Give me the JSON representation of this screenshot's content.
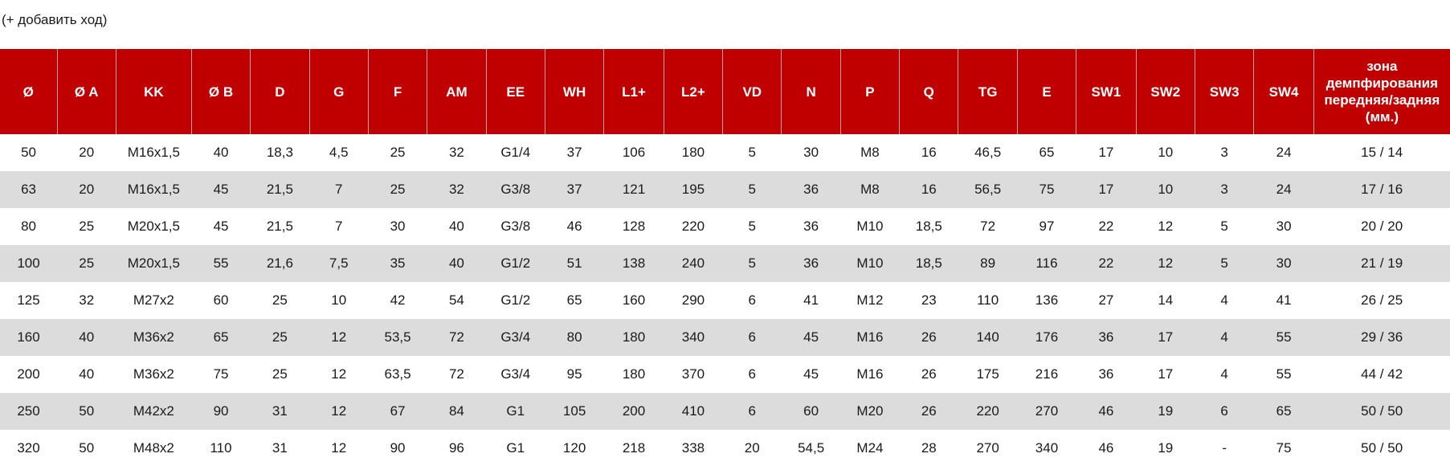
{
  "note": "(+ добавить ход)",
  "columns": [
    "Ø",
    "Ø A",
    "KK",
    "Ø B",
    "D",
    "G",
    "F",
    "AM",
    "EE",
    "WH",
    "L1+",
    "L2+",
    "VD",
    "N",
    "P",
    "Q",
    "TG",
    "E",
    "SW1",
    "SW2",
    "SW3",
    "SW4",
    "зона демпфирования передняя/задняя (мм.)"
  ],
  "rows": [
    [
      "50",
      "20",
      "M16x1,5",
      "40",
      "18,3",
      "4,5",
      "25",
      "32",
      "G1/4",
      "37",
      "106",
      "180",
      "5",
      "30",
      "M8",
      "16",
      "46,5",
      "65",
      "17",
      "10",
      "3",
      "24",
      "15 / 14"
    ],
    [
      "63",
      "20",
      "M16x1,5",
      "45",
      "21,5",
      "7",
      "25",
      "32",
      "G3/8",
      "37",
      "121",
      "195",
      "5",
      "36",
      "M8",
      "16",
      "56,5",
      "75",
      "17",
      "10",
      "3",
      "24",
      "17 / 16"
    ],
    [
      "80",
      "25",
      "M20x1,5",
      "45",
      "21,5",
      "7",
      "30",
      "40",
      "G3/8",
      "46",
      "128",
      "220",
      "5",
      "36",
      "M10",
      "18,5",
      "72",
      "97",
      "22",
      "12",
      "5",
      "30",
      "20 / 20"
    ],
    [
      "100",
      "25",
      "M20x1,5",
      "55",
      "21,6",
      "7,5",
      "35",
      "40",
      "G1/2",
      "51",
      "138",
      "240",
      "5",
      "36",
      "M10",
      "18,5",
      "89",
      "116",
      "22",
      "12",
      "5",
      "30",
      "21 / 19"
    ],
    [
      "125",
      "32",
      "M27x2",
      "60",
      "25",
      "10",
      "42",
      "54",
      "G1/2",
      "65",
      "160",
      "290",
      "6",
      "41",
      "M12",
      "23",
      "110",
      "136",
      "27",
      "14",
      "4",
      "41",
      "26 / 25"
    ],
    [
      "160",
      "40",
      "M36x2",
      "65",
      "25",
      "12",
      "53,5",
      "72",
      "G3/4",
      "80",
      "180",
      "340",
      "6",
      "45",
      "M16",
      "26",
      "140",
      "176",
      "36",
      "17",
      "4",
      "55",
      "29 / 36"
    ],
    [
      "200",
      "40",
      "M36x2",
      "75",
      "25",
      "12",
      "63,5",
      "72",
      "G3/4",
      "95",
      "180",
      "370",
      "6",
      "45",
      "M16",
      "26",
      "175",
      "216",
      "36",
      "17",
      "4",
      "55",
      "44 / 42"
    ],
    [
      "250",
      "50",
      "M42x2",
      "90",
      "31",
      "12",
      "67",
      "84",
      "G1",
      "105",
      "200",
      "410",
      "6",
      "60",
      "M20",
      "26",
      "220",
      "270",
      "46",
      "19",
      "6",
      "65",
      "50 / 50"
    ],
    [
      "320",
      "50",
      "M48x2",
      "110",
      "31",
      "12",
      "90",
      "96",
      "G1",
      "120",
      "218",
      "338",
      "20",
      "54,5",
      "M24",
      "28",
      "270",
      "340",
      "46",
      "19",
      "-",
      "75",
      "50 / 50"
    ]
  ],
  "colors": {
    "header_bg": "#c00000",
    "header_text": "#ffffff",
    "stripe": "#dcdcdc"
  }
}
